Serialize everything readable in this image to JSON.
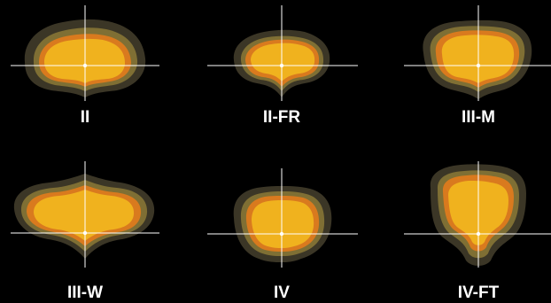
{
  "colors": {
    "background": "#000000",
    "band_outer": "#3b3626",
    "band_second": "#7f6f34",
    "band_third": "#d97a1e",
    "band_core": "#f0b21e",
    "axis": "#ffffff",
    "label": "#ffffff"
  },
  "patterns": [
    {
      "id": "pattern-ii",
      "label": "II"
    },
    {
      "id": "pattern-ii-fr",
      "label": "II-FR"
    },
    {
      "id": "pattern-iii-m",
      "label": "III-M"
    },
    {
      "id": "pattern-iii-w",
      "label": "III-W"
    },
    {
      "id": "pattern-iv",
      "label": "IV"
    },
    {
      "id": "pattern-iv-ft",
      "label": "IV-FT"
    }
  ]
}
